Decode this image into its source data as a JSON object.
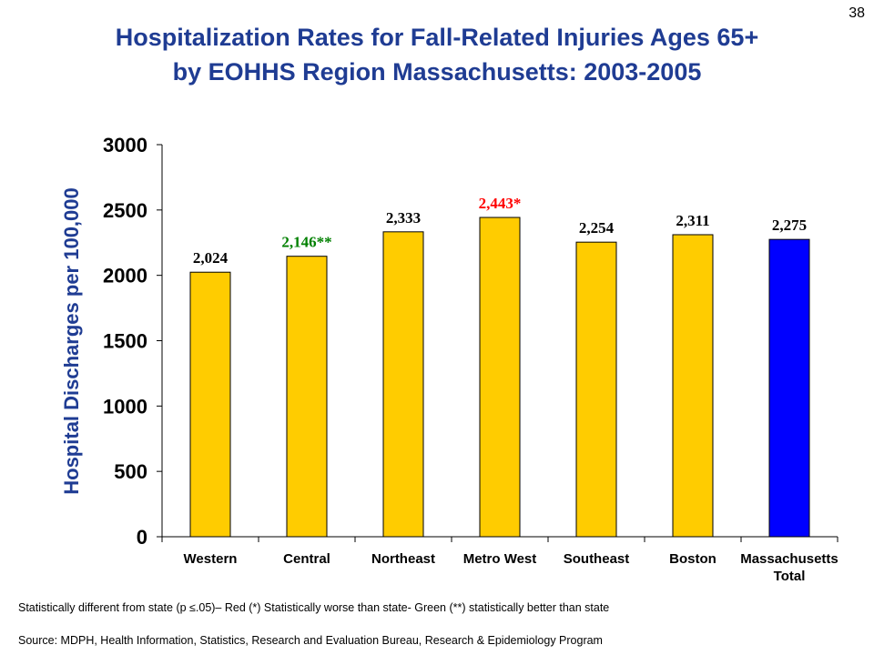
{
  "page_number": "38",
  "title_line1": "Hospitalization Rates for Fall-Related Injuries Ages 65+",
  "title_line2": "by EOHHS Region Massachusetts: 2003-2005",
  "footnote": "Statistically different from state (p ≤.05)– Red (*) Statistically worse than state- Green (**) statistically better than state",
  "source": "Source:  MDPH, Health Information, Statistics, Research and Evaluation Bureau, Research & Epidemiology Program",
  "colors": {
    "title": "#1f3c93",
    "bar_region": "#ffcc00",
    "bar_state": "#0000ff",
    "label_worse": "#ff0000",
    "label_better": "#008000",
    "label_default": "#000000"
  },
  "chart_data": {
    "type": "bar",
    "title": "Hospitalization Rates for Fall-Related Injuries Ages 65+ by EOHHS Region Massachusetts: 2003-2005",
    "xlabel": "",
    "ylabel": "Hospital Discharges per 100,000",
    "ylim": [
      0,
      3000
    ],
    "yticks": [
      0,
      500,
      1000,
      1500,
      2000,
      2500,
      3000
    ],
    "grid": false,
    "categories": [
      [
        "Western"
      ],
      [
        "Central"
      ],
      [
        "Northeast"
      ],
      [
        "Metro West"
      ],
      [
        "Southeast"
      ],
      [
        "Boston"
      ],
      [
        "Massachusetts",
        "Total"
      ]
    ],
    "values": [
      2024,
      2146,
      2333,
      2443,
      2254,
      2311,
      2275
    ],
    "data_labels": [
      "2,024",
      "2,146**",
      "2,333",
      "2,443*",
      "2,254",
      "2,311",
      "2,275"
    ],
    "label_status": [
      "default",
      "better",
      "default",
      "worse",
      "default",
      "default",
      "default"
    ],
    "bar_kind": [
      "region",
      "region",
      "region",
      "region",
      "region",
      "region",
      "state"
    ]
  }
}
